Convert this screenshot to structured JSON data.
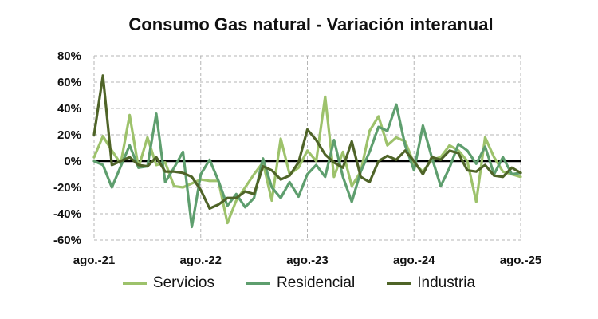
{
  "chart_data": {
    "type": "line",
    "title": "Consumo Gas natural - Variación interanual",
    "x_tick_labels": [
      "ago.-21",
      "ago.-22",
      "ago.-23",
      "ago.-24",
      "ago.-25"
    ],
    "y_tick_labels": [
      "80%",
      "60%",
      "40%",
      "20%",
      "0%",
      "-20%",
      "-40%",
      "-60%"
    ],
    "ylim": [
      -60,
      80
    ],
    "y_step": 20,
    "n_points": 49,
    "grid": true,
    "legend_position": "bottom",
    "series": [
      {
        "name": "Servicios",
        "color": "#9dc26b",
        "values": [
          3,
          19,
          8,
          -2,
          35,
          -5,
          18,
          -3,
          -1,
          -19,
          -20,
          -17,
          -14,
          -15,
          -15,
          -47,
          -30,
          -20,
          -10,
          -1,
          -30,
          17,
          -10,
          -5,
          8,
          0,
          49,
          -12,
          7,
          -19,
          -8,
          23,
          34,
          12,
          18,
          15,
          -2,
          -8,
          1,
          3,
          12,
          8,
          0,
          -31,
          18,
          3,
          -8,
          -10,
          -12
        ]
      },
      {
        "name": "Residencial",
        "color": "#5e9e6e",
        "values": [
          0,
          -3,
          -20,
          -4,
          12,
          -5,
          -4,
          36,
          -16,
          -5,
          7,
          -50,
          -10,
          1,
          -15,
          -34,
          -25,
          -35,
          -28,
          2,
          -20,
          -28,
          -16,
          -27,
          -10,
          -3,
          -12,
          16,
          -12,
          -31,
          -8,
          7,
          26,
          23,
          43,
          12,
          -7,
          27,
          3,
          -19,
          -5,
          13,
          8,
          -2,
          11,
          -10,
          3,
          -10,
          -9
        ]
      },
      {
        "name": "Industria",
        "color": "#4f6428",
        "values": [
          20,
          65,
          -3,
          0,
          3,
          -3,
          -4,
          3,
          -8,
          -8,
          -9,
          -12,
          -22,
          -36,
          -33,
          -28,
          -28,
          -23,
          -25,
          -4,
          -7,
          -14,
          -11,
          -1,
          24,
          16,
          5,
          -1,
          -5,
          15,
          -12,
          -16,
          0,
          4,
          1,
          8,
          0,
          -10,
          3,
          1,
          8,
          6,
          -7,
          -8,
          -3,
          -11,
          -12,
          -5,
          -9
        ]
      }
    ]
  }
}
